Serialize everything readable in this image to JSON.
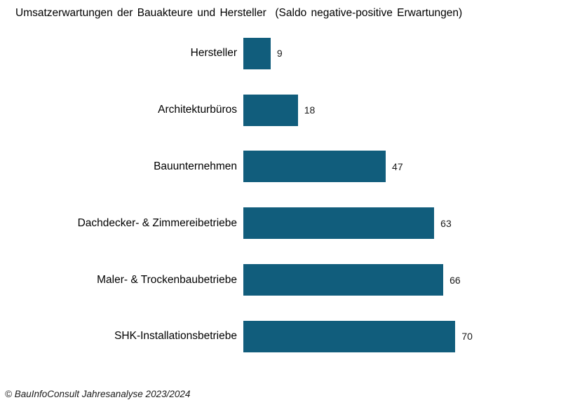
{
  "title": "Umsatzerwartungen der Bauakteure und Hersteller  (Saldo negative-positive Erwartungen)",
  "footer": "© BauInfoConsult Jahresanalyse 2023/2024",
  "colors": {
    "bar": "#115d7c",
    "text": "#000000",
    "background": "#ffffff"
  },
  "chart_data": {
    "type": "bar",
    "orientation": "horizontal",
    "title": "Umsatzerwartungen der Bauakteure und Hersteller (Saldo negative-positive Erwartungen)",
    "categories": [
      "Hersteller",
      "Architekturbüros",
      "Bauunternehmen",
      "Dachdecker- & Zimmereibetriebe",
      "Maler- & Trockenbaubetriebe",
      "SHK-Installationsbetriebe"
    ],
    "values": [
      9,
      18,
      47,
      63,
      66,
      70
    ],
    "value_axis_range": [
      0,
      100
    ],
    "value_labels_shown": true,
    "grid": false,
    "legend": false,
    "bar_color": "#115d7c",
    "xlabel": "",
    "ylabel": ""
  }
}
